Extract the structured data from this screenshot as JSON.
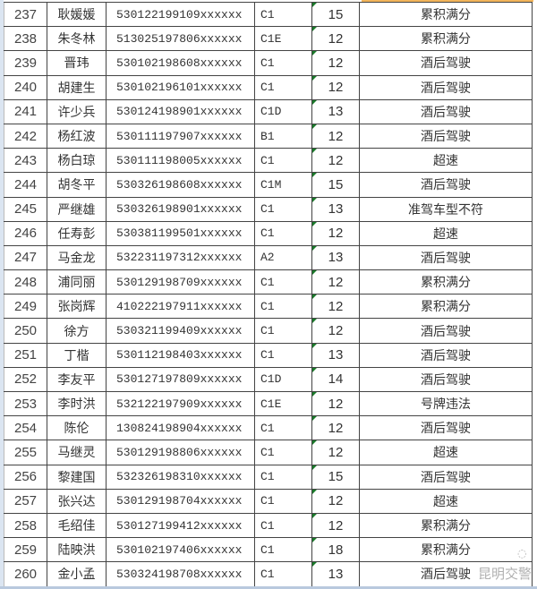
{
  "colors": {
    "grid": "#444444",
    "text": "#333333",
    "selection": "#f2b45a",
    "note_marker": "#1a7a2a"
  },
  "rows": [
    [
      "237",
      "耿媛媛",
      "530122199109xxxxxx",
      "C1",
      "15",
      "累积满分"
    ],
    [
      "238",
      "朱冬林",
      "513025197806xxxxxx",
      "C1E",
      "12",
      "累积满分"
    ],
    [
      "239",
      "晋玮",
      "530102198608xxxxxx",
      "C1",
      "12",
      "酒后驾驶"
    ],
    [
      "240",
      "胡建生",
      "530102196101xxxxxx",
      "C1",
      "12",
      "酒后驾驶"
    ],
    [
      "241",
      "许少兵",
      "530124198901xxxxxx",
      "C1D",
      "13",
      "酒后驾驶"
    ],
    [
      "242",
      "杨红波",
      "530111197907xxxxxx",
      "B1",
      "12",
      "酒后驾驶"
    ],
    [
      "243",
      "杨白琼",
      "530111198005xxxxxx",
      "C1",
      "12",
      "超速"
    ],
    [
      "244",
      "胡冬平",
      "530326198608xxxxxx",
      "C1M",
      "15",
      "酒后驾驶"
    ],
    [
      "245",
      "严继雄",
      "530326198901xxxxxx",
      "C1",
      "13",
      "准驾车型不符"
    ],
    [
      "246",
      "任寿彭",
      "530381199501xxxxxx",
      "C1",
      "12",
      "超速"
    ],
    [
      "247",
      "马金龙",
      "532231197312xxxxxx",
      "A2",
      "13",
      "酒后驾驶"
    ],
    [
      "248",
      "浦同丽",
      "530129198709xxxxxx",
      "C1",
      "12",
      "累积满分"
    ],
    [
      "249",
      "张岗辉",
      "410222197911xxxxxx",
      "C1",
      "12",
      "累积满分"
    ],
    [
      "250",
      "徐方",
      "530321199409xxxxxx",
      "C1",
      "12",
      "酒后驾驶"
    ],
    [
      "251",
      "丁楷",
      "530112198403xxxxxx",
      "C1",
      "13",
      "酒后驾驶"
    ],
    [
      "252",
      "李友平",
      "530127197809xxxxxx",
      "C1D",
      "14",
      "酒后驾驶"
    ],
    [
      "253",
      "李时洪",
      "532122197909xxxxxx",
      "C1E",
      "12",
      "号牌违法"
    ],
    [
      "254",
      "陈伦",
      "130824198904xxxxxx",
      "C1",
      "12",
      "酒后驾驶"
    ],
    [
      "255",
      "马继灵",
      "530129198806xxxxxx",
      "C1",
      "12",
      "超速"
    ],
    [
      "256",
      "黎建国",
      "532326198310xxxxxx",
      "C1",
      "15",
      "酒后驾驶"
    ],
    [
      "257",
      "张兴达",
      "530129198704xxxxxx",
      "C1",
      "12",
      "超速"
    ],
    [
      "258",
      "毛绍佳",
      "530127199412xxxxxx",
      "C1",
      "12",
      "累积满分"
    ],
    [
      "259",
      "陆映洪",
      "530102197406xxxxxx",
      "C1",
      "18",
      "累积满分"
    ],
    [
      "260",
      "金小孟",
      "530324198708xxxxxx",
      "C1",
      "13",
      "酒后驾驶"
    ]
  ],
  "watermark": {
    "text": "昆明交警",
    "icon": "wechat-icon"
  }
}
